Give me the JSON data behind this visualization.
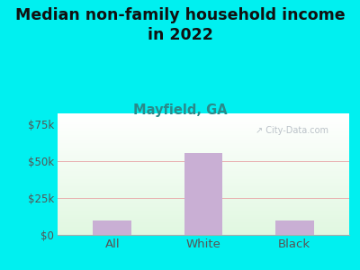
{
  "title": "Median non-family household income\nin 2022",
  "subtitle": "Mayfield, GA",
  "categories": [
    "All",
    "White",
    "Black"
  ],
  "values": [
    10000,
    55000,
    10000
  ],
  "bar_color": "#c9afd4",
  "yticks": [
    0,
    25000,
    50000,
    75000
  ],
  "ytick_labels": [
    "$0",
    "$25k",
    "$50k",
    "$75k"
  ],
  "ylim": [
    0,
    82000
  ],
  "background_outer": "#00f0f0",
  "grid_color": "#e8b0b0",
  "title_color": "#111111",
  "subtitle_color": "#2a8a8a",
  "tick_color": "#555555",
  "watermark": "↗ City-Data.com",
  "title_fontsize": 12.5,
  "subtitle_fontsize": 10.5,
  "tick_fontsize": 8.5,
  "xlabel_fontsize": 9.5
}
